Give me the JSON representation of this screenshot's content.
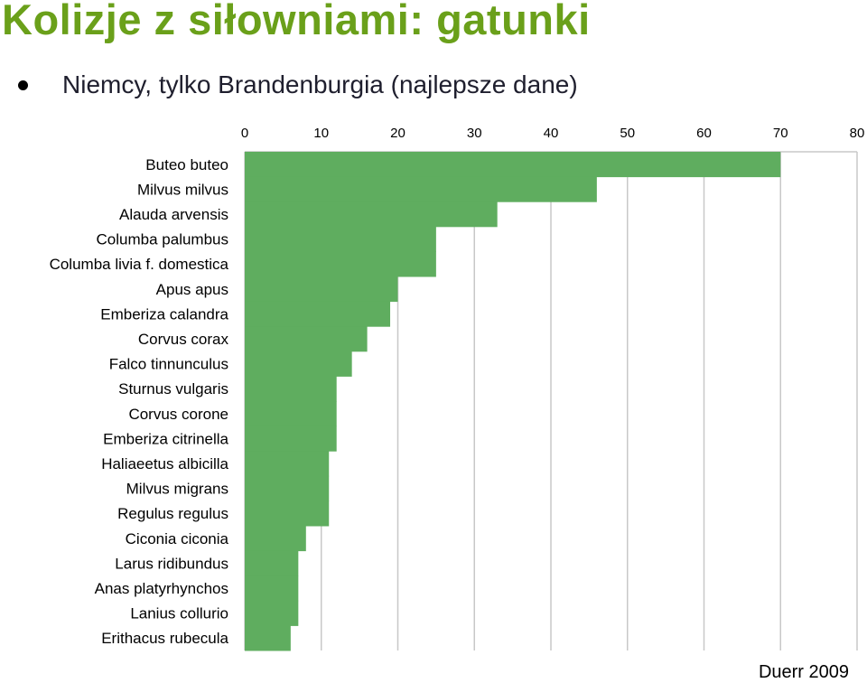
{
  "title": "Kolizje z siłowniami: gatunki",
  "bullet": "Niemcy, tylko Brandenburgia (najlepsze dane)",
  "credit": "Duerr 2009",
  "colors": {
    "title": "#6aa01a",
    "bar": "#5fad5f",
    "grid": "#c8c8c8"
  },
  "chart_data": {
    "type": "bar",
    "orientation": "horizontal",
    "x_axis_position": "top",
    "grid": true,
    "xlim": [
      0,
      80
    ],
    "xticks": [
      "0",
      "10",
      "20",
      "30",
      "40",
      "50",
      "60",
      "70",
      "80"
    ],
    "categories": [
      "Buteo buteo",
      "Milvus milvus",
      "Alauda arvensis",
      "Columba palumbus",
      "Columba livia f. domestica",
      "Apus apus",
      "Emberiza calandra",
      "Corvus corax",
      "Falco tinnunculus",
      "Sturnus vulgaris",
      "Corvus corone",
      "Emberiza citrinella",
      "Haliaeetus albicilla",
      "Milvus migrans",
      "Regulus regulus",
      "Ciconia ciconia",
      "Larus ridibundus",
      "Anas platyrhynchos",
      "Lanius collurio",
      "Erithacus rubecula"
    ],
    "values": [
      70,
      46,
      33,
      25,
      25,
      20,
      19,
      16,
      14,
      12,
      12,
      12,
      11,
      11,
      11,
      8,
      7,
      7,
      7,
      6
    ]
  }
}
